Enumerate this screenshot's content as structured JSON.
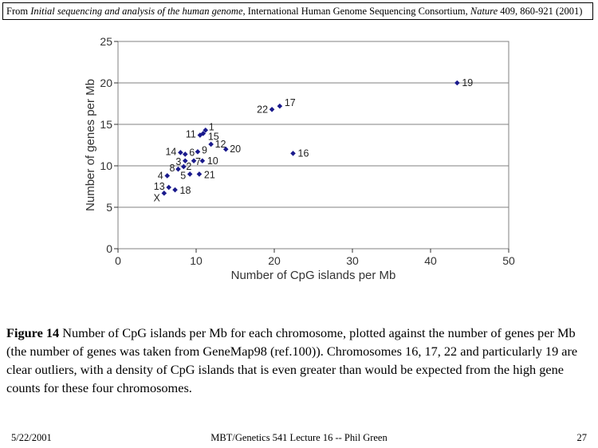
{
  "source": {
    "prefix": "From ",
    "title": "Initial sequencing and analysis of the human genome",
    "middle": ", International Human Genome Sequencing Consortium, ",
    "journal": "Nature",
    "suffix": " 409, 860-921 (2001)"
  },
  "chart_data": {
    "type": "scatter",
    "xlabel": "Number of CpG islands per Mb",
    "ylabel": "Number of genes per Mb",
    "xlim": [
      0,
      50
    ],
    "ylim": [
      0,
      25
    ],
    "xticks": [
      0,
      10,
      20,
      30,
      40,
      50
    ],
    "yticks": [
      0,
      5,
      10,
      15,
      20,
      25
    ],
    "grid": "horizontal",
    "marker_color": "#1a1a8c",
    "points": [
      {
        "label": "1",
        "x": 11.2,
        "y": 14.3
      },
      {
        "label": "2",
        "x": 8.4,
        "y": 9.9
      },
      {
        "label": "3",
        "x": 8.6,
        "y": 10.6
      },
      {
        "label": "4",
        "x": 6.3,
        "y": 8.8
      },
      {
        "label": "5",
        "x": 9.2,
        "y": 9.0
      },
      {
        "label": "6",
        "x": 8.6,
        "y": 11.4
      },
      {
        "label": "7",
        "x": 9.7,
        "y": 10.6
      },
      {
        "label": "8",
        "x": 7.7,
        "y": 9.6
      },
      {
        "label": "9",
        "x": 10.2,
        "y": 11.7
      },
      {
        "label": "10",
        "x": 10.8,
        "y": 10.6
      },
      {
        "label": "11",
        "x": 10.5,
        "y": 13.7
      },
      {
        "label": "12",
        "x": 11.9,
        "y": 12.6
      },
      {
        "label": "13",
        "x": 6.5,
        "y": 7.4
      },
      {
        "label": "14",
        "x": 8.0,
        "y": 11.6
      },
      {
        "label": "15",
        "x": 10.9,
        "y": 13.9
      },
      {
        "label": "16",
        "x": 22.4,
        "y": 11.5
      },
      {
        "label": "17",
        "x": 20.7,
        "y": 17.2
      },
      {
        "label": "18",
        "x": 7.3,
        "y": 7.1
      },
      {
        "label": "19",
        "x": 43.4,
        "y": 20.0
      },
      {
        "label": "20",
        "x": 13.8,
        "y": 12.0
      },
      {
        "label": "21",
        "x": 10.4,
        "y": 9.0
      },
      {
        "label": "22",
        "x": 19.7,
        "y": 16.8
      },
      {
        "label": "X",
        "x": 5.9,
        "y": 6.7
      }
    ]
  },
  "caption": {
    "lead": "Figure 14",
    "text": " Number of CpG islands per Mb for each chromosome, plotted against the number of genes per Mb (the number of genes was taken from GeneMap98 (ref.100)). Chromosomes 16, 17, 22 and particularly 19 are clear outliers, with a density of CpG islands that is even greater than would be expected from the high gene counts for these four chromosomes."
  },
  "footer": {
    "date": "5/22/2001",
    "course": "MBT/Genetics 541 Lecture 16 -- Phil Green",
    "page": "27"
  }
}
